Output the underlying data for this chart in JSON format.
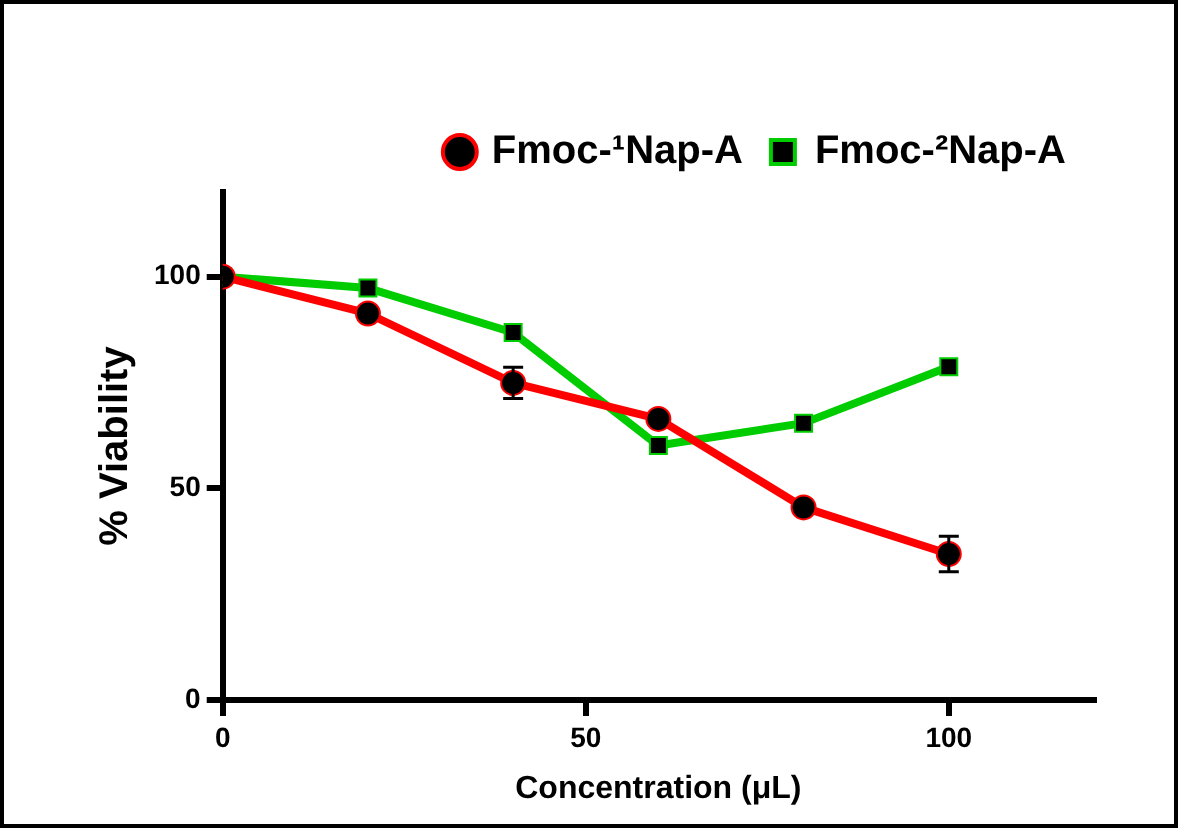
{
  "chart_data": {
    "type": "line",
    "xlabel": "Concentration (μL)",
    "ylabel": "% Viability",
    "x": [
      0,
      20,
      40,
      60,
      80,
      100
    ],
    "xlim": [
      0,
      120
    ],
    "xticks": [
      0,
      50,
      100
    ],
    "ylim": [
      0,
      120
    ],
    "yticks": [
      0,
      50,
      100
    ],
    "grid": false,
    "legend": "top right",
    "line_style": "solid",
    "series": [
      {
        "name": "Fmoc-¹Nap-A",
        "color": "#ff0000",
        "marker": "circle",
        "values": [
          100,
          91.3,
          74.9,
          66.4,
          45.5,
          34.5
        ],
        "errors": [
          null,
          null,
          3.7,
          null,
          null,
          4.2
        ]
      },
      {
        "name": "Fmoc-²Nap-A",
        "color": "#00cc00",
        "marker": "square",
        "values": [
          100,
          97.3,
          86.8,
          60.1,
          65.4,
          78.7
        ]
      }
    ]
  }
}
